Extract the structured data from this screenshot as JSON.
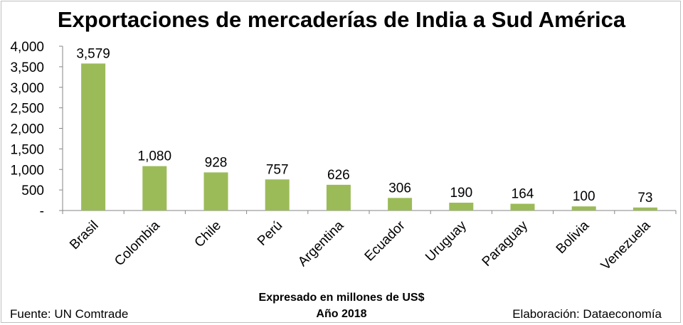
{
  "chart_data": {
    "type": "bar",
    "title": "Exportaciones de mercaderías de India a Sud América",
    "categories": [
      "Brasil",
      "Colombia",
      "Chile",
      "Perú",
      "Argentina",
      "Ecuador",
      "Uruguay",
      "Paraguay",
      "Bolivia",
      "Venezuela"
    ],
    "values": [
      3579,
      1080,
      928,
      757,
      626,
      306,
      190,
      164,
      100,
      73
    ],
    "value_labels": [
      "3,579",
      "1,080",
      "928",
      "757",
      "626",
      "306",
      "190",
      "164",
      "100",
      "73"
    ],
    "y_ticks": [
      {
        "value": 0,
        "label": "-"
      },
      {
        "value": 500,
        "label": "500"
      },
      {
        "value": 1000,
        "label": "1,000"
      },
      {
        "value": 1500,
        "label": "1,500"
      },
      {
        "value": 2000,
        "label": "2,000"
      },
      {
        "value": 2500,
        "label": "2,500"
      },
      {
        "value": 3000,
        "label": "3,000"
      },
      {
        "value": 3500,
        "label": "3,500"
      },
      {
        "value": 4000,
        "label": "4,000"
      }
    ],
    "ylim": [
      0,
      4000
    ],
    "bar_color": "#9bbb59",
    "grid": false,
    "legend": "none"
  },
  "footer": {
    "source": "Fuente:  UN Comtrade",
    "unit_line": "Expresado en millones de US$",
    "year_line": "Año 2018",
    "credit": "Elaboración: Dataeconomía"
  }
}
